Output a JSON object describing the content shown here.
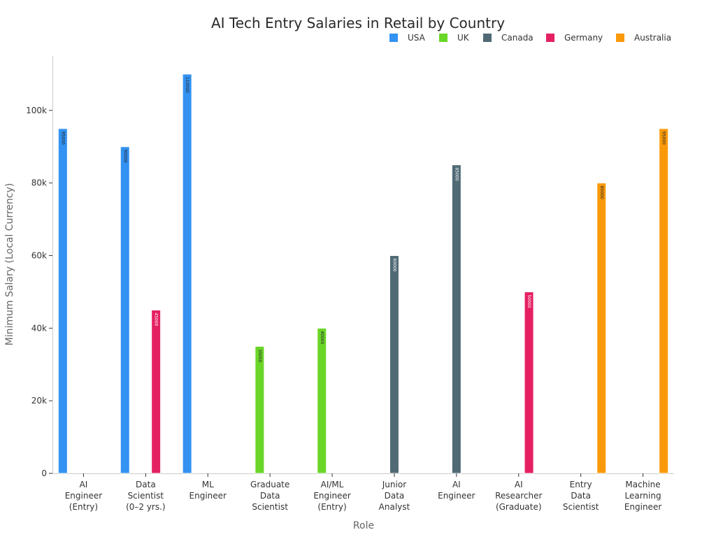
{
  "chart_data": {
    "type": "bar",
    "title": "AI Tech Entry Salaries in Retail by Country",
    "xlabel": "Role",
    "ylabel": "Minimum Salary (Local Currency)",
    "ylim": [
      0,
      115000
    ],
    "yticks": [
      0,
      20000,
      40000,
      60000,
      80000,
      100000
    ],
    "ytick_labels": [
      "0",
      "20k",
      "40k",
      "60k",
      "80k",
      "100k"
    ],
    "grid": false,
    "legend_position": "top-right",
    "categories": [
      [
        "AI",
        "Engineer",
        "(Entry)"
      ],
      [
        "Data",
        "Scientist",
        "(0–2 yrs.)"
      ],
      [
        "ML",
        "Engineer"
      ],
      [
        "Graduate",
        "Data",
        "Scientist"
      ],
      [
        "AI/ML",
        "Engineer",
        "(Entry)"
      ],
      [
        "Junior",
        "Data",
        "Analyst"
      ],
      [
        "AI",
        "Engineer"
      ],
      [
        "AI",
        "Researcher",
        "(Graduate)"
      ],
      [
        "Entry",
        "Data",
        "Scientist"
      ],
      [
        "Machine",
        "Learning",
        "Engineer"
      ]
    ],
    "series": [
      {
        "name": "USA",
        "color": "#3392f2",
        "label_color": "#222222",
        "values": [
          95000,
          90000,
          110000,
          null,
          null,
          null,
          null,
          null,
          null,
          null
        ]
      },
      {
        "name": "UK",
        "color": "#6ad628",
        "label_color": "#222222",
        "values": [
          null,
          null,
          null,
          35000,
          40000,
          null,
          null,
          null,
          null,
          null
        ]
      },
      {
        "name": "Canada",
        "color": "#506a75",
        "label_color": "#ffffff",
        "values": [
          null,
          null,
          null,
          null,
          null,
          60000,
          85000,
          null,
          null,
          null
        ]
      },
      {
        "name": "Germany",
        "color": "#e52062",
        "label_color": "#ffffff",
        "values": [
          null,
          45000,
          null,
          null,
          null,
          null,
          null,
          50000,
          null,
          null
        ]
      },
      {
        "name": "Australia",
        "color": "#fa9a0a",
        "label_color": "#222222",
        "values": [
          null,
          null,
          null,
          null,
          null,
          null,
          null,
          null,
          80000,
          95000
        ]
      }
    ]
  }
}
